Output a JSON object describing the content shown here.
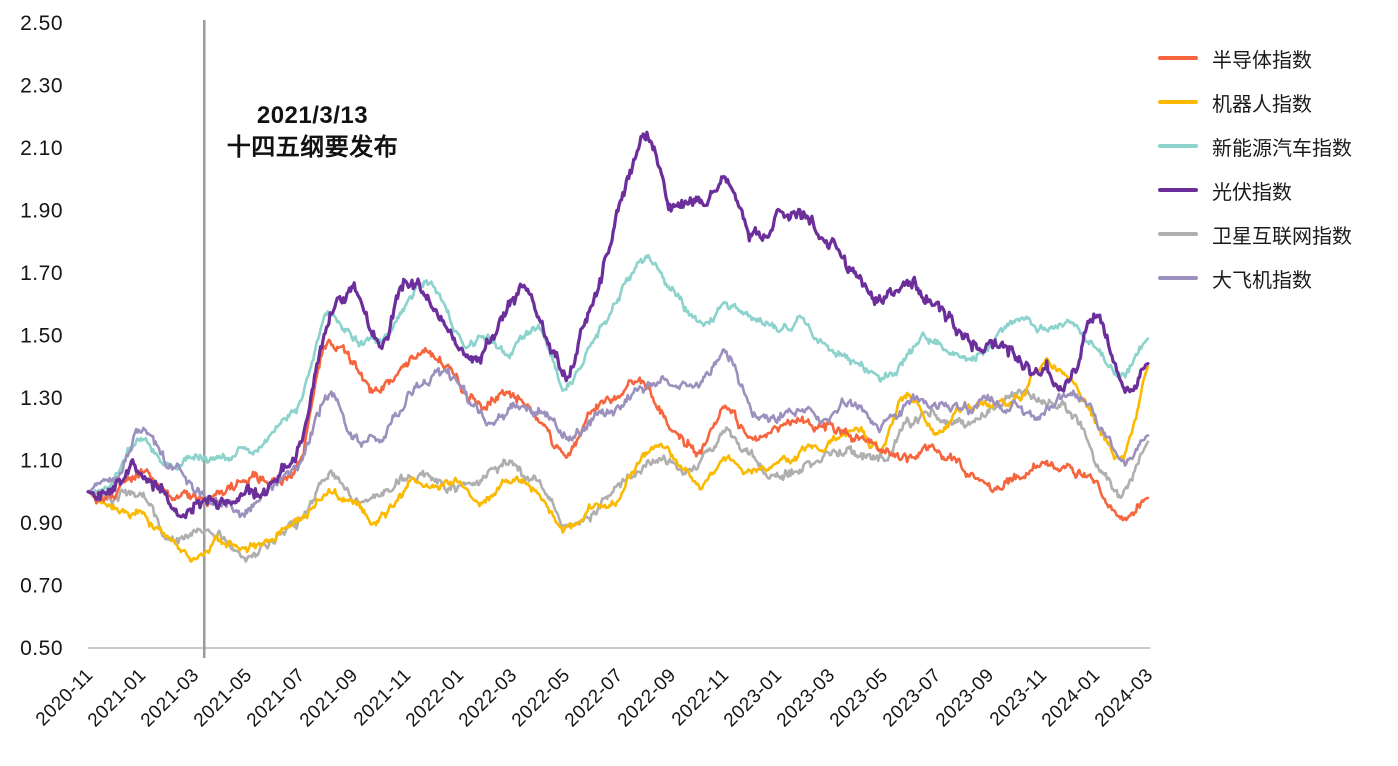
{
  "chart_data": {
    "type": "line",
    "title": "",
    "xlabel": "",
    "ylabel": "",
    "grid": "off",
    "legend_position": "right",
    "ylim": [
      0.5,
      2.5
    ],
    "y_tick_step": 0.2,
    "y_tick_labels": [
      "0.50",
      "0.70",
      "0.90",
      "1.10",
      "1.30",
      "1.50",
      "1.70",
      "1.90",
      "2.10",
      "2.30",
      "2.50"
    ],
    "x_months": [
      "2020-11",
      "2020-12",
      "2021-01",
      "2021-02",
      "2021-03",
      "2021-04",
      "2021-05",
      "2021-06",
      "2021-07",
      "2021-08",
      "2021-09",
      "2021-10",
      "2021-11",
      "2021-12",
      "2022-01",
      "2022-02",
      "2022-03",
      "2022-04",
      "2022-05",
      "2022-06",
      "2022-07",
      "2022-08",
      "2022-09",
      "2022-10",
      "2022-11",
      "2022-12",
      "2023-01",
      "2023-02",
      "2023-03",
      "2023-04",
      "2023-05",
      "2023-06",
      "2023-07",
      "2023-08",
      "2023-09",
      "2023-10",
      "2023-11",
      "2023-12",
      "2024-01",
      "2024-02",
      "2024-03"
    ],
    "x_tick_labels": [
      "2020-11",
      "2021-01",
      "2021-03",
      "2021-05",
      "2021-07",
      "2021-09",
      "2021-11",
      "2022-01",
      "2022-03",
      "2022-05",
      "2022-07",
      "2022-09",
      "2022-11",
      "2023-01",
      "2023-03",
      "2023-05",
      "2023-07",
      "2023-09",
      "2023-11",
      "2024-01",
      "2024-03"
    ],
    "annotation": {
      "line1": "2021/3/13",
      "line2": "十四五纲要发布",
      "marker_date": "2021-03-13",
      "marker_color": "#9b9b9b"
    },
    "axis_color": "#c9c9c9",
    "series": [
      {
        "key": "semiconductor",
        "name": "半导体指数",
        "color": "#F6653E",
        "monthly_values": [
          1.0,
          1.03,
          1.08,
          1.03,
          0.99,
          1.0,
          1.01,
          1.03,
          1.1,
          1.46,
          1.38,
          1.3,
          1.4,
          1.4,
          1.32,
          1.25,
          1.33,
          1.27,
          1.15,
          1.25,
          1.3,
          1.31,
          1.23,
          1.17,
          1.26,
          1.14,
          1.16,
          1.21,
          1.19,
          1.16,
          1.13,
          1.12,
          1.15,
          1.11,
          1.02,
          1.04,
          1.09,
          1.05,
          1.03,
          0.9,
          0.98
        ]
      },
      {
        "key": "robot",
        "name": "机器人指数",
        "color": "#FBB900",
        "monthly_values": [
          1.0,
          0.96,
          0.92,
          0.85,
          0.8,
          0.84,
          0.81,
          0.88,
          0.92,
          1.0,
          0.97,
          0.93,
          1.0,
          1.04,
          1.02,
          0.97,
          1.01,
          0.96,
          0.88,
          0.94,
          1.0,
          1.12,
          1.12,
          1.04,
          1.1,
          1.07,
          1.05,
          1.1,
          1.12,
          1.18,
          1.13,
          1.3,
          1.18,
          1.24,
          1.26,
          1.28,
          1.4,
          1.36,
          1.25,
          1.14,
          1.4
        ]
      },
      {
        "key": "nev",
        "name": "新能源汽车指数",
        "color": "#8BD3CC",
        "monthly_values": [
          1.0,
          1.05,
          1.16,
          1.06,
          1.08,
          1.11,
          1.13,
          1.18,
          1.28,
          1.54,
          1.5,
          1.48,
          1.58,
          1.65,
          1.52,
          1.49,
          1.47,
          1.51,
          1.33,
          1.48,
          1.63,
          1.74,
          1.66,
          1.57,
          1.6,
          1.55,
          1.5,
          1.52,
          1.44,
          1.4,
          1.36,
          1.44,
          1.47,
          1.42,
          1.47,
          1.51,
          1.5,
          1.52,
          1.46,
          1.36,
          1.49
        ]
      },
      {
        "key": "pv",
        "name": "光伏指数",
        "color": "#6B2E9B",
        "monthly_values": [
          1.0,
          1.03,
          1.08,
          0.96,
          0.97,
          0.98,
          1.0,
          1.04,
          1.12,
          1.49,
          1.66,
          1.5,
          1.7,
          1.63,
          1.5,
          1.48,
          1.65,
          1.58,
          1.38,
          1.6,
          1.9,
          2.1,
          1.93,
          1.9,
          2.0,
          1.8,
          1.9,
          1.85,
          1.78,
          1.7,
          1.64,
          1.66,
          1.6,
          1.52,
          1.48,
          1.45,
          1.42,
          1.38,
          1.55,
          1.34,
          1.41
        ]
      },
      {
        "key": "satellite",
        "name": "卫星互联网指数",
        "color": "#AFAFAF",
        "monthly_values": [
          1.0,
          0.97,
          0.99,
          0.85,
          0.84,
          0.86,
          0.82,
          0.88,
          0.93,
          1.04,
          1.0,
          0.99,
          1.04,
          1.06,
          1.03,
          1.02,
          1.05,
          0.99,
          0.91,
          0.96,
          1.01,
          1.11,
          1.08,
          1.09,
          1.16,
          1.08,
          1.06,
          1.12,
          1.16,
          1.14,
          1.12,
          1.2,
          1.24,
          1.26,
          1.3,
          1.35,
          1.31,
          1.24,
          1.12,
          0.98,
          1.16
        ]
      },
      {
        "key": "aircraft",
        "name": "大飞机指数",
        "color": "#9C90BE",
        "monthly_values": [
          1.0,
          1.05,
          1.2,
          1.08,
          1.02,
          0.98,
          0.97,
          1.02,
          1.08,
          1.3,
          1.18,
          1.2,
          1.33,
          1.38,
          1.34,
          1.24,
          1.28,
          1.26,
          1.18,
          1.27,
          1.31,
          1.37,
          1.35,
          1.3,
          1.4,
          1.28,
          1.23,
          1.3,
          1.25,
          1.28,
          1.22,
          1.29,
          1.26,
          1.24,
          1.26,
          1.28,
          1.27,
          1.29,
          1.25,
          1.08,
          1.18
        ]
      }
    ]
  }
}
